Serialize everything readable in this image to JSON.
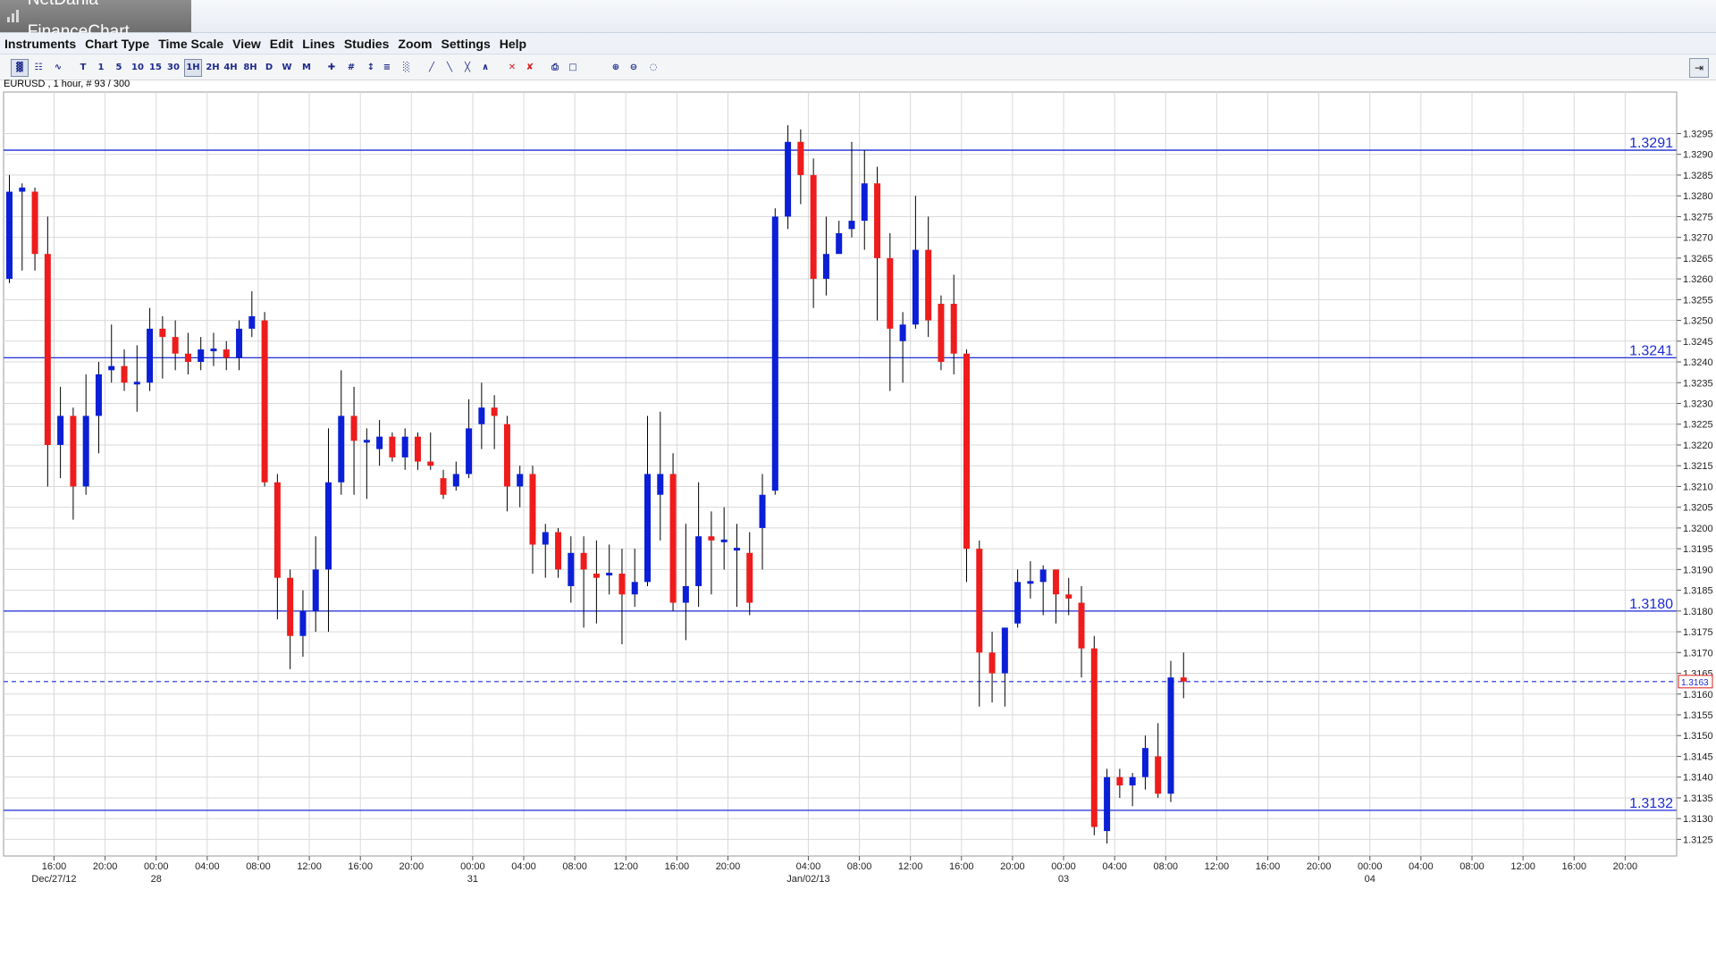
{
  "window": {
    "title": "NetDania FinanceChart"
  },
  "menu": [
    "Instruments",
    "Chart Type",
    "Time Scale",
    "View",
    "Edit",
    "Lines",
    "Studies",
    "Zoom",
    "Settings",
    "Help"
  ],
  "toolbar": {
    "timeframes": [
      "T",
      "1",
      "5",
      "10",
      "15",
      "30",
      "1H",
      "2H",
      "4H",
      "8H",
      "D",
      "W",
      "M"
    ],
    "active_timeframe": "1H"
  },
  "chart_info": "EURUSD , 1 hour, # 93 / 300",
  "colors": {
    "bull": "#0b1fd6",
    "bear": "#ee1c1c",
    "wick": "#000000",
    "hline": "#1d2bd6",
    "grid": "#d9d9d9"
  },
  "chart_data": {
    "type": "candlestick",
    "symbol": "EURUSD",
    "interval": "1 hour",
    "ylim": [
      1.312,
      1.33
    ],
    "y_ticks": [
      "1.3125",
      "1.3130",
      "1.3135",
      "1.3140",
      "1.3145",
      "1.3150",
      "1.3155",
      "1.3160",
      "1.3165",
      "1.3170",
      "1.3175",
      "1.3180",
      "1.3185",
      "1.3190",
      "1.3195",
      "1.3200",
      "1.3205",
      "1.3210",
      "1.3215",
      "1.3220",
      "1.3225",
      "1.3230",
      "1.3235",
      "1.3240",
      "1.3245",
      "1.3250",
      "1.3255",
      "1.3260",
      "1.3265",
      "1.3270",
      "1.3275",
      "1.3280",
      "1.3285",
      "1.3290",
      "1.3295"
    ],
    "x_ticks": [
      {
        "bar": 3.5,
        "time": "16:00",
        "date": "Dec/27/12"
      },
      {
        "bar": 7.5,
        "time": "20:00",
        "date": ""
      },
      {
        "bar": 11.5,
        "time": "00:00",
        "date": "28"
      },
      {
        "bar": 15.5,
        "time": "04:00",
        "date": ""
      },
      {
        "bar": 19.5,
        "time": "08:00",
        "date": ""
      },
      {
        "bar": 23.5,
        "time": "12:00",
        "date": ""
      },
      {
        "bar": 27.5,
        "time": "16:00",
        "date": ""
      },
      {
        "bar": 31.5,
        "time": "20:00",
        "date": ""
      },
      {
        "bar": 36.3,
        "time": "00:00",
        "date": "31"
      },
      {
        "bar": 40.3,
        "time": "04:00",
        "date": ""
      },
      {
        "bar": 44.3,
        "time": "08:00",
        "date": ""
      },
      {
        "bar": 48.3,
        "time": "12:00",
        "date": ""
      },
      {
        "bar": 52.3,
        "time": "16:00",
        "date": ""
      },
      {
        "bar": 56.3,
        "time": "20:00",
        "date": ""
      },
      {
        "bar": 62.6,
        "time": "04:00",
        "date": "Jan/02/13"
      },
      {
        "bar": 66.6,
        "time": "08:00",
        "date": ""
      },
      {
        "bar": 70.6,
        "time": "12:00",
        "date": ""
      },
      {
        "bar": 74.6,
        "time": "16:00",
        "date": ""
      },
      {
        "bar": 78.6,
        "time": "20:00",
        "date": ""
      },
      {
        "bar": 82.6,
        "time": "00:00",
        "date": "03"
      },
      {
        "bar": 86.6,
        "time": "04:00",
        "date": ""
      },
      {
        "bar": 90.6,
        "time": "08:00",
        "date": ""
      },
      {
        "bar": 94.6,
        "time": "12:00",
        "date": ""
      },
      {
        "bar": 98.6,
        "time": "16:00",
        "date": ""
      },
      {
        "bar": 102.6,
        "time": "20:00",
        "date": ""
      },
      {
        "bar": 106.6,
        "time": "00:00",
        "date": "04"
      },
      {
        "bar": 110.6,
        "time": "04:00",
        "date": ""
      },
      {
        "bar": 114.6,
        "time": "08:00",
        "date": ""
      },
      {
        "bar": 118.6,
        "time": "12:00",
        "date": ""
      },
      {
        "bar": 122.6,
        "time": "16:00",
        "date": ""
      },
      {
        "bar": 126.6,
        "time": "20:00",
        "date": ""
      }
    ],
    "horizontal_lines": [
      {
        "value": 1.3291,
        "label": "1.3291"
      },
      {
        "value": 1.3241,
        "label": "1.3241"
      },
      {
        "value": 1.318,
        "label": "1.3180"
      },
      {
        "value": 1.3132,
        "label": "1.3132"
      }
    ],
    "last_price": {
      "value": 1.3163,
      "label": "1.3163"
    },
    "candles": [
      {
        "o": 1.326,
        "h": 1.3285,
        "l": 1.3259,
        "c": 1.3281
      },
      {
        "o": 1.3281,
        "h": 1.3283,
        "l": 1.3262,
        "c": 1.3282
      },
      {
        "o": 1.3281,
        "h": 1.3282,
        "l": 1.3262,
        "c": 1.3266
      },
      {
        "o": 1.3266,
        "h": 1.3275,
        "l": 1.321,
        "c": 1.322
      },
      {
        "o": 1.322,
        "h": 1.3234,
        "l": 1.3212,
        "c": 1.3227
      },
      {
        "o": 1.3227,
        "h": 1.3229,
        "l": 1.3202,
        "c": 1.321
      },
      {
        "o": 1.321,
        "h": 1.3237,
        "l": 1.3208,
        "c": 1.3227
      },
      {
        "o": 1.3227,
        "h": 1.324,
        "l": 1.3218,
        "c": 1.3237
      },
      {
        "o": 1.3238,
        "h": 1.3249,
        "l": 1.3235,
        "c": 1.3239
      },
      {
        "o": 1.3239,
        "h": 1.3243,
        "l": 1.3233,
        "c": 1.3235
      },
      {
        "o": 1.3235,
        "h": 1.3244,
        "l": 1.3228,
        "c": 1.3235
      },
      {
        "o": 1.3235,
        "h": 1.3253,
        "l": 1.3233,
        "c": 1.3248
      },
      {
        "o": 1.3248,
        "h": 1.3251,
        "l": 1.3236,
        "c": 1.3246
      },
      {
        "o": 1.3246,
        "h": 1.325,
        "l": 1.3238,
        "c": 1.3242
      },
      {
        "o": 1.3242,
        "h": 1.3247,
        "l": 1.3237,
        "c": 1.324
      },
      {
        "o": 1.324,
        "h": 1.3246,
        "l": 1.3238,
        "c": 1.3243
      },
      {
        "o": 1.3243,
        "h": 1.3247,
        "l": 1.3239,
        "c": 1.3243
      },
      {
        "o": 1.3243,
        "h": 1.3245,
        "l": 1.3238,
        "c": 1.3241
      },
      {
        "o": 1.3241,
        "h": 1.325,
        "l": 1.3238,
        "c": 1.3248
      },
      {
        "o": 1.3248,
        "h": 1.3257,
        "l": 1.3246,
        "c": 1.3251
      },
      {
        "o": 1.325,
        "h": 1.3252,
        "l": 1.321,
        "c": 1.3211
      },
      {
        "o": 1.3211,
        "h": 1.3213,
        "l": 1.3178,
        "c": 1.3188
      },
      {
        "o": 1.3188,
        "h": 1.319,
        "l": 1.3166,
        "c": 1.3174
      },
      {
        "o": 1.3174,
        "h": 1.3185,
        "l": 1.3169,
        "c": 1.318
      },
      {
        "o": 1.318,
        "h": 1.3198,
        "l": 1.3175,
        "c": 1.319
      },
      {
        "o": 1.319,
        "h": 1.3224,
        "l": 1.3175,
        "c": 1.3211
      },
      {
        "o": 1.3211,
        "h": 1.3238,
        "l": 1.3208,
        "c": 1.3227
      },
      {
        "o": 1.3227,
        "h": 1.3234,
        "l": 1.3208,
        "c": 1.3221
      },
      {
        "o": 1.3221,
        "h": 1.3224,
        "l": 1.3207,
        "c": 1.3221
      },
      {
        "o": 1.3219,
        "h": 1.3226,
        "l": 1.3215,
        "c": 1.3222
      },
      {
        "o": 1.3222,
        "h": 1.3223,
        "l": 1.3216,
        "c": 1.3217
      },
      {
        "o": 1.3217,
        "h": 1.3224,
        "l": 1.3214,
        "c": 1.3222
      },
      {
        "o": 1.3222,
        "h": 1.3223,
        "l": 1.3214,
        "c": 1.3216
      },
      {
        "o": 1.3216,
        "h": 1.3223,
        "l": 1.3214,
        "c": 1.3215
      },
      {
        "o": 1.3212,
        "h": 1.3214,
        "l": 1.3207,
        "c": 1.3208
      },
      {
        "o": 1.321,
        "h": 1.3216,
        "l": 1.3209,
        "c": 1.3213
      },
      {
        "o": 1.3213,
        "h": 1.3231,
        "l": 1.3212,
        "c": 1.3224
      },
      {
        "o": 1.3225,
        "h": 1.3235,
        "l": 1.3219,
        "c": 1.3229
      },
      {
        "o": 1.3229,
        "h": 1.3232,
        "l": 1.3219,
        "c": 1.3227
      },
      {
        "o": 1.3225,
        "h": 1.3227,
        "l": 1.3204,
        "c": 1.321
      },
      {
        "o": 1.321,
        "h": 1.3215,
        "l": 1.3205,
        "c": 1.3213
      },
      {
        "o": 1.3213,
        "h": 1.3215,
        "l": 1.3189,
        "c": 1.3196
      },
      {
        "o": 1.3196,
        "h": 1.3201,
        "l": 1.3188,
        "c": 1.3199
      },
      {
        "o": 1.3199,
        "h": 1.32,
        "l": 1.3188,
        "c": 1.319
      },
      {
        "o": 1.3186,
        "h": 1.3198,
        "l": 1.3182,
        "c": 1.3194
      },
      {
        "o": 1.3194,
        "h": 1.3198,
        "l": 1.3176,
        "c": 1.319
      },
      {
        "o": 1.3189,
        "h": 1.3197,
        "l": 1.3177,
        "c": 1.3188
      },
      {
        "o": 1.3189,
        "h": 1.3196,
        "l": 1.3184,
        "c": 1.3189
      },
      {
        "o": 1.3189,
        "h": 1.3195,
        "l": 1.3172,
        "c": 1.3184
      },
      {
        "o": 1.3184,
        "h": 1.3195,
        "l": 1.3181,
        "c": 1.3187
      },
      {
        "o": 1.3187,
        "h": 1.3227,
        "l": 1.3186,
        "c": 1.3213
      },
      {
        "o": 1.3208,
        "h": 1.3228,
        "l": 1.3197,
        "c": 1.3213
      },
      {
        "o": 1.3213,
        "h": 1.3218,
        "l": 1.318,
        "c": 1.3182
      },
      {
        "o": 1.3182,
        "h": 1.3201,
        "l": 1.3173,
        "c": 1.3186
      },
      {
        "o": 1.3186,
        "h": 1.3211,
        "l": 1.3181,
        "c": 1.3198
      },
      {
        "o": 1.3198,
        "h": 1.3204,
        "l": 1.3184,
        "c": 1.3197
      },
      {
        "o": 1.3197,
        "h": 1.3205,
        "l": 1.319,
        "c": 1.3197
      },
      {
        "o": 1.3195,
        "h": 1.3201,
        "l": 1.3181,
        "c": 1.3195
      },
      {
        "o": 1.3194,
        "h": 1.3199,
        "l": 1.3179,
        "c": 1.3182
      },
      {
        "o": 1.32,
        "h": 1.3213,
        "l": 1.319,
        "c": 1.3208
      },
      {
        "o": 1.3209,
        "h": 1.3277,
        "l": 1.3208,
        "c": 1.3275
      },
      {
        "o": 1.3275,
        "h": 1.3297,
        "l": 1.3272,
        "c": 1.3293
      },
      {
        "o": 1.3293,
        "h": 1.3296,
        "l": 1.3278,
        "c": 1.3285
      },
      {
        "o": 1.3285,
        "h": 1.3289,
        "l": 1.3253,
        "c": 1.326
      },
      {
        "o": 1.326,
        "h": 1.3275,
        "l": 1.3256,
        "c": 1.3266
      },
      {
        "o": 1.3266,
        "h": 1.3274,
        "l": 1.3267,
        "c": 1.3271
      },
      {
        "o": 1.3272,
        "h": 1.3293,
        "l": 1.327,
        "c": 1.3274
      },
      {
        "o": 1.3274,
        "h": 1.3291,
        "l": 1.3267,
        "c": 1.3283
      },
      {
        "o": 1.3283,
        "h": 1.3287,
        "l": 1.325,
        "c": 1.3265
      },
      {
        "o": 1.3265,
        "h": 1.3271,
        "l": 1.3233,
        "c": 1.3248
      },
      {
        "o": 1.3245,
        "h": 1.3252,
        "l": 1.3235,
        "c": 1.3249
      },
      {
        "o": 1.3249,
        "h": 1.328,
        "l": 1.3248,
        "c": 1.3267
      },
      {
        "o": 1.3267,
        "h": 1.3275,
        "l": 1.3246,
        "c": 1.325
      },
      {
        "o": 1.3254,
        "h": 1.3256,
        "l": 1.3238,
        "c": 1.324
      },
      {
        "o": 1.3254,
        "h": 1.3261,
        "l": 1.3237,
        "c": 1.3242
      },
      {
        "o": 1.3242,
        "h": 1.3243,
        "l": 1.3187,
        "c": 1.3195
      },
      {
        "o": 1.3195,
        "h": 1.3197,
        "l": 1.3157,
        "c": 1.317
      },
      {
        "o": 1.317,
        "h": 1.3175,
        "l": 1.3158,
        "c": 1.3165
      },
      {
        "o": 1.3165,
        "h": 1.3176,
        "l": 1.3157,
        "c": 1.3176
      },
      {
        "o": 1.3177,
        "h": 1.319,
        "l": 1.3176,
        "c": 1.3187
      },
      {
        "o": 1.3187,
        "h": 1.3192,
        "l": 1.3183,
        "c": 1.3187
      },
      {
        "o": 1.3187,
        "h": 1.3191,
        "l": 1.3179,
        "c": 1.319
      },
      {
        "o": 1.319,
        "h": 1.319,
        "l": 1.3177,
        "c": 1.3184
      },
      {
        "o": 1.3184,
        "h": 1.3188,
        "l": 1.3179,
        "c": 1.3183
      },
      {
        "o": 1.3182,
        "h": 1.3186,
        "l": 1.3164,
        "c": 1.3171
      },
      {
        "o": 1.3171,
        "h": 1.3174,
        "l": 1.3126,
        "c": 1.3128
      },
      {
        "o": 1.3127,
        "h": 1.3142,
        "l": 1.3124,
        "c": 1.314
      },
      {
        "o": 1.314,
        "h": 1.3142,
        "l": 1.3135,
        "c": 1.3138
      },
      {
        "o": 1.3138,
        "h": 1.3141,
        "l": 1.3133,
        "c": 1.314
      },
      {
        "o": 1.314,
        "h": 1.315,
        "l": 1.3137,
        "c": 1.3147
      },
      {
        "o": 1.3145,
        "h": 1.3153,
        "l": 1.3135,
        "c": 1.3136
      },
      {
        "o": 1.3136,
        "h": 1.3168,
        "l": 1.3134,
        "c": 1.3164
      },
      {
        "o": 1.3164,
        "h": 1.317,
        "l": 1.3159,
        "c": 1.3163
      }
    ]
  }
}
